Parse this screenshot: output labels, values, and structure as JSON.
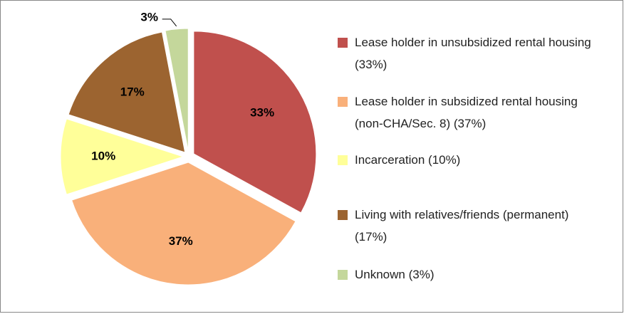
{
  "chart_data": {
    "type": "pie",
    "categories": [
      "Lease holder in unsubsidized rental housing (33%)",
      "Lease holder in subsidized rental housing (non-CHA/Sec. 8) (37%)",
      "Incarceration (10%)",
      "Living with relatives/friends (permanent) (17%)",
      "Unknown (3%)"
    ],
    "values": [
      33,
      37,
      10,
      17,
      3
    ],
    "value_labels": [
      "33%",
      "37%",
      "10%",
      "17%",
      "3%"
    ],
    "colors": [
      "#c0504d",
      "#f9b07a",
      "#ffff99",
      "#9c6430",
      "#c4d79b"
    ],
    "legend": "right"
  }
}
